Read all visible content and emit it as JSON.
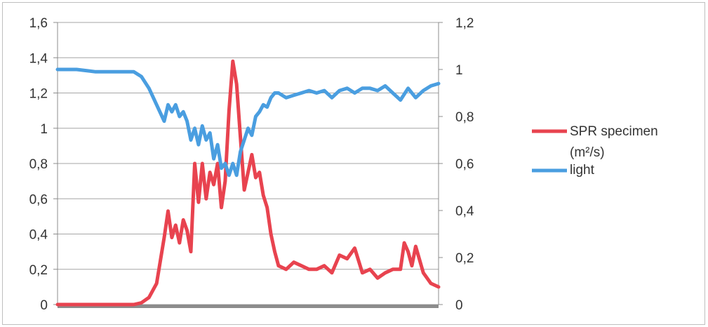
{
  "chart_data": {
    "type": "line",
    "x_axis": {
      "labels": false,
      "baseline_band_color": "#8c8c8c"
    },
    "y_left": {
      "min": 0,
      "max": 1.6,
      "ticks": [
        "0",
        "0,2",
        "0,4",
        "0,6",
        "0,8",
        "1",
        "1,2",
        "1,4",
        "1,6"
      ]
    },
    "y_right": {
      "min": 0,
      "max": 1.2,
      "ticks": [
        "0",
        "0,2",
        "0,4",
        "0,6",
        "0,8",
        "1",
        "1,2"
      ]
    },
    "grid": true,
    "legend_position": "right",
    "series": [
      {
        "name": "SPR specimen (m²/s)",
        "axis": "left",
        "color": "#e8434f",
        "values": [
          [
            0,
            0.0
          ],
          [
            0.1,
            0.0
          ],
          [
            0.15,
            0.0
          ],
          [
            0.2,
            0.0
          ],
          [
            0.22,
            0.01
          ],
          [
            0.24,
            0.04
          ],
          [
            0.26,
            0.12
          ],
          [
            0.27,
            0.25
          ],
          [
            0.28,
            0.38
          ],
          [
            0.29,
            0.53
          ],
          [
            0.3,
            0.38
          ],
          [
            0.31,
            0.45
          ],
          [
            0.32,
            0.35
          ],
          [
            0.33,
            0.48
          ],
          [
            0.34,
            0.42
          ],
          [
            0.35,
            0.3
          ],
          [
            0.36,
            0.8
          ],
          [
            0.37,
            0.58
          ],
          [
            0.38,
            0.8
          ],
          [
            0.39,
            0.6
          ],
          [
            0.4,
            0.75
          ],
          [
            0.41,
            0.68
          ],
          [
            0.42,
            0.8
          ],
          [
            0.43,
            0.55
          ],
          [
            0.44,
            0.7
          ],
          [
            0.45,
            1.1
          ],
          [
            0.46,
            1.38
          ],
          [
            0.47,
            1.25
          ],
          [
            0.48,
            0.95
          ],
          [
            0.49,
            0.65
          ],
          [
            0.5,
            0.75
          ],
          [
            0.51,
            0.85
          ],
          [
            0.52,
            0.72
          ],
          [
            0.53,
            0.75
          ],
          [
            0.54,
            0.62
          ],
          [
            0.55,
            0.55
          ],
          [
            0.56,
            0.4
          ],
          [
            0.57,
            0.3
          ],
          [
            0.58,
            0.22
          ],
          [
            0.6,
            0.2
          ],
          [
            0.62,
            0.24
          ],
          [
            0.64,
            0.22
          ],
          [
            0.66,
            0.2
          ],
          [
            0.68,
            0.2
          ],
          [
            0.7,
            0.22
          ],
          [
            0.72,
            0.18
          ],
          [
            0.74,
            0.28
          ],
          [
            0.76,
            0.26
          ],
          [
            0.78,
            0.32
          ],
          [
            0.8,
            0.18
          ],
          [
            0.82,
            0.2
          ],
          [
            0.84,
            0.15
          ],
          [
            0.86,
            0.18
          ],
          [
            0.88,
            0.2
          ],
          [
            0.9,
            0.2
          ],
          [
            0.91,
            0.35
          ],
          [
            0.92,
            0.3
          ],
          [
            0.93,
            0.22
          ],
          [
            0.94,
            0.33
          ],
          [
            0.96,
            0.18
          ],
          [
            0.98,
            0.12
          ],
          [
            1.0,
            0.1
          ]
        ]
      },
      {
        "name": "light",
        "axis": "right",
        "color": "#4a9ee0",
        "values": [
          [
            0,
            1.0
          ],
          [
            0.05,
            1.0
          ],
          [
            0.1,
            0.99
          ],
          [
            0.2,
            0.99
          ],
          [
            0.22,
            0.97
          ],
          [
            0.24,
            0.92
          ],
          [
            0.26,
            0.85
          ],
          [
            0.28,
            0.78
          ],
          [
            0.29,
            0.85
          ],
          [
            0.3,
            0.82
          ],
          [
            0.31,
            0.85
          ],
          [
            0.32,
            0.8
          ],
          [
            0.33,
            0.82
          ],
          [
            0.34,
            0.78
          ],
          [
            0.35,
            0.7
          ],
          [
            0.36,
            0.75
          ],
          [
            0.37,
            0.68
          ],
          [
            0.38,
            0.76
          ],
          [
            0.39,
            0.7
          ],
          [
            0.4,
            0.73
          ],
          [
            0.41,
            0.62
          ],
          [
            0.42,
            0.68
          ],
          [
            0.43,
            0.58
          ],
          [
            0.44,
            0.6
          ],
          [
            0.45,
            0.55
          ],
          [
            0.46,
            0.6
          ],
          [
            0.47,
            0.55
          ],
          [
            0.48,
            0.65
          ],
          [
            0.49,
            0.7
          ],
          [
            0.5,
            0.75
          ],
          [
            0.51,
            0.72
          ],
          [
            0.52,
            0.8
          ],
          [
            0.53,
            0.82
          ],
          [
            0.54,
            0.85
          ],
          [
            0.55,
            0.84
          ],
          [
            0.56,
            0.88
          ],
          [
            0.57,
            0.9
          ],
          [
            0.58,
            0.9
          ],
          [
            0.6,
            0.88
          ],
          [
            0.62,
            0.89
          ],
          [
            0.64,
            0.9
          ],
          [
            0.66,
            0.91
          ],
          [
            0.68,
            0.9
          ],
          [
            0.7,
            0.91
          ],
          [
            0.72,
            0.88
          ],
          [
            0.74,
            0.91
          ],
          [
            0.76,
            0.92
          ],
          [
            0.78,
            0.9
          ],
          [
            0.8,
            0.92
          ],
          [
            0.82,
            0.92
          ],
          [
            0.84,
            0.91
          ],
          [
            0.86,
            0.93
          ],
          [
            0.88,
            0.9
          ],
          [
            0.9,
            0.87
          ],
          [
            0.92,
            0.92
          ],
          [
            0.94,
            0.88
          ],
          [
            0.96,
            0.91
          ],
          [
            0.98,
            0.93
          ],
          [
            1.0,
            0.94
          ]
        ]
      }
    ]
  },
  "legend": {
    "items": [
      {
        "line1": "SPR specimen",
        "line2": "(m²/s)",
        "color": "#e8434f"
      },
      {
        "line1": "light",
        "line2": "",
        "color": "#4a9ee0"
      }
    ]
  }
}
